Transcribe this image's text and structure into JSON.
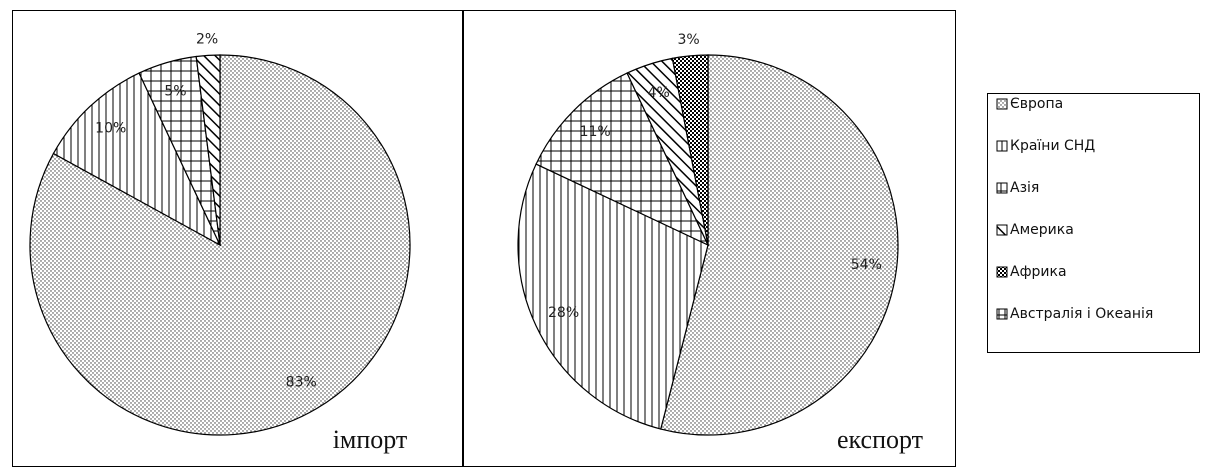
{
  "chart_data": [
    {
      "type": "pie",
      "title": "імпорт",
      "values": [
        83,
        10,
        5,
        2,
        null,
        null
      ],
      "value_labels": [
        "83%",
        "10%",
        "5%",
        "2%",
        null,
        null
      ]
    },
    {
      "type": "pie",
      "title": "експорт",
      "values": [
        54,
        28,
        11,
        4,
        3,
        null
      ],
      "value_labels": [
        "54%",
        "28%",
        "11%",
        "4%",
        "3%",
        null
      ]
    }
  ],
  "legend": {
    "items": [
      "Європа",
      "Країни СНД",
      "Азія",
      "Америка",
      "Африка",
      "Австралія і Океанія"
    ],
    "patterns": [
      "dots",
      "vertical",
      "grid",
      "diagonal",
      "checker",
      "cross"
    ]
  }
}
